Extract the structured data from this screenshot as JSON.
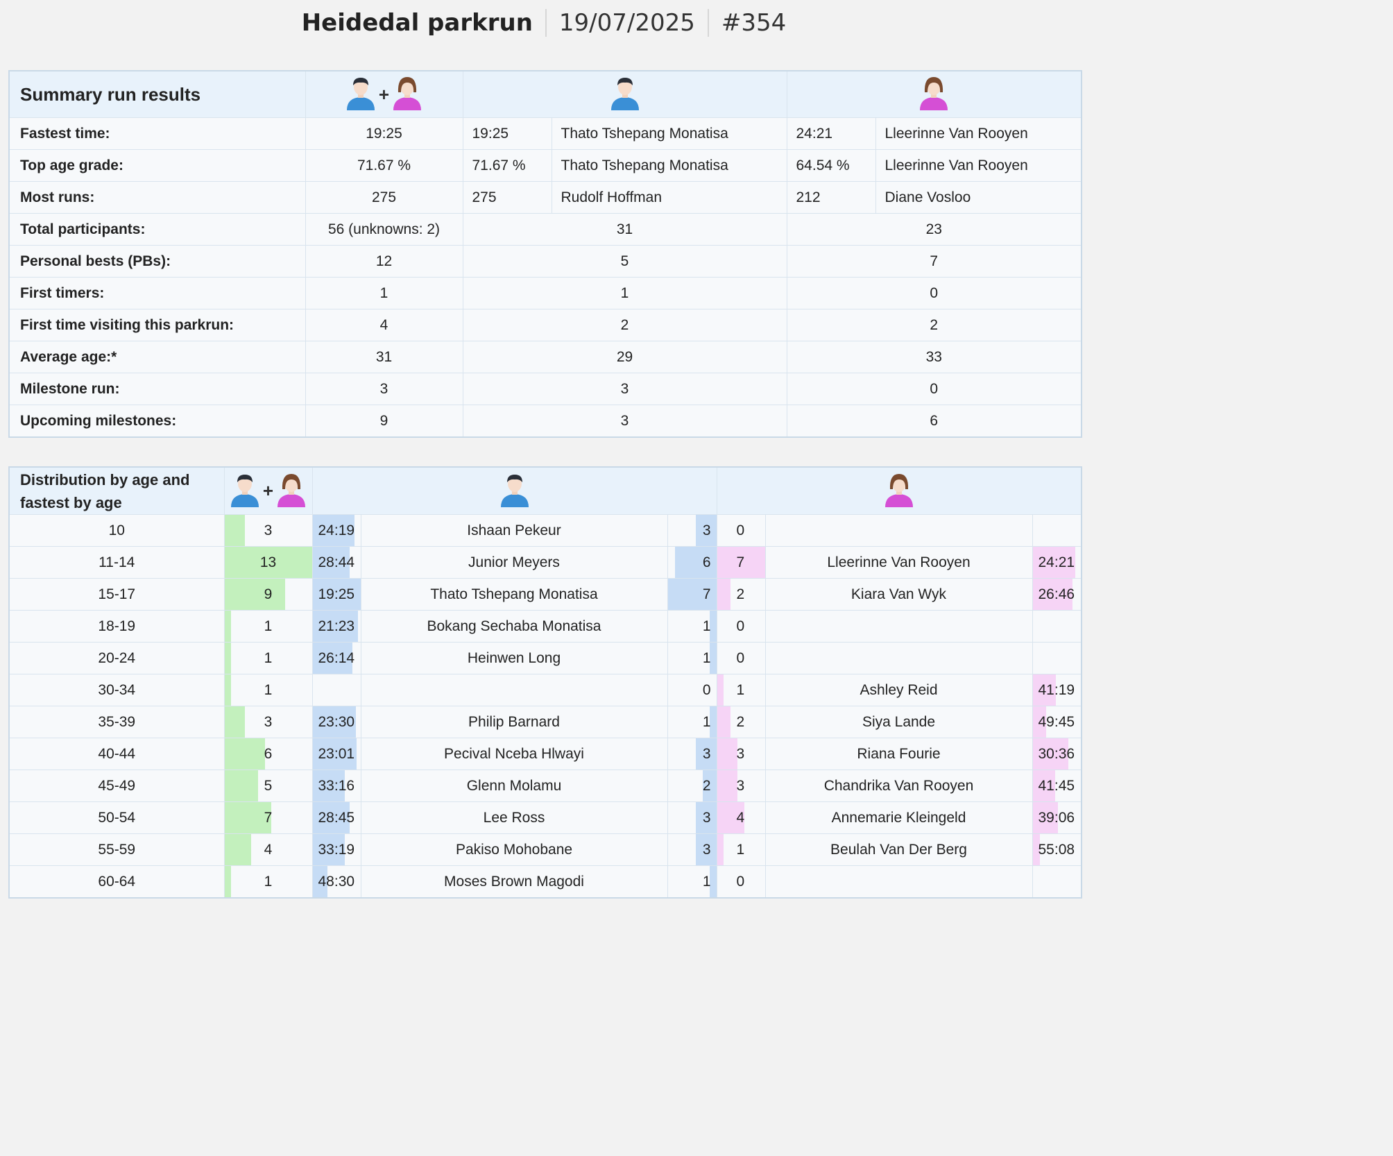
{
  "header": {
    "event": "Heidedal parkrun",
    "date": "19/07/2025",
    "run_number": "#354"
  },
  "icons": {
    "combined": [
      "male-avatar-icon",
      "female-avatar-icon"
    ],
    "male": "male-avatar-icon",
    "female": "female-avatar-icon",
    "plus": "+"
  },
  "summary": {
    "title": "Summary run results",
    "rows": [
      {
        "label": "Fastest time:",
        "all": "19:25",
        "male_val": "19:25",
        "male_name": "Thato Tshepang Monatisa",
        "female_val": "24:21",
        "female_name": "Lleerinne Van Rooyen"
      },
      {
        "label": "Top age grade:",
        "all": "71.67 %",
        "male_val": "71.67 %",
        "male_name": "Thato Tshepang Monatisa",
        "female_val": "64.54 %",
        "female_name": "Lleerinne Van Rooyen"
      },
      {
        "label": "Most runs:",
        "all": "275",
        "male_val": "275",
        "male_name": "Rudolf Hoffman",
        "female_val": "212",
        "female_name": "Diane Vosloo"
      },
      {
        "label": "Total participants:",
        "all": "56 (unknowns: 2)",
        "male": "31",
        "female": "23"
      },
      {
        "label": "Personal bests (PBs):",
        "all": "12",
        "male": "5",
        "female": "7"
      },
      {
        "label": "First timers:",
        "all": "1",
        "male": "1",
        "female": "0"
      },
      {
        "label": "First time visiting this parkrun:",
        "all": "4",
        "male": "2",
        "female": "2"
      },
      {
        "label": "Average age:*",
        "all": "31",
        "male": "29",
        "female": "33"
      },
      {
        "label": "Milestone run:",
        "all": "3",
        "male": "3",
        "female": "0"
      },
      {
        "label": "Upcoming milestones:",
        "all": "9",
        "male": "3",
        "female": "6"
      }
    ]
  },
  "distribution": {
    "title_line1": "Distribution by age and",
    "title_line2": "fastest by age",
    "rows": [
      {
        "age": "10",
        "total": "3",
        "m_time": "24:19",
        "m_name": "Ishaan Pekeur",
        "m_count": "3",
        "f_count": "0",
        "f_name": "",
        "f_time": ""
      },
      {
        "age": "11-14",
        "total": "13",
        "m_time": "28:44",
        "m_name": "Junior Meyers",
        "m_count": "6",
        "f_count": "7",
        "f_name": "Lleerinne Van Rooyen",
        "f_time": "24:21"
      },
      {
        "age": "15-17",
        "total": "9",
        "m_time": "19:25",
        "m_name": "Thato Tshepang Monatisa",
        "m_count": "7",
        "f_count": "2",
        "f_name": "Kiara Van Wyk",
        "f_time": "26:46"
      },
      {
        "age": "18-19",
        "total": "1",
        "m_time": "21:23",
        "m_name": "Bokang Sechaba Monatisa",
        "m_count": "1",
        "f_count": "0",
        "f_name": "",
        "f_time": ""
      },
      {
        "age": "20-24",
        "total": "1",
        "m_time": "26:14",
        "m_name": "Heinwen Long",
        "m_count": "1",
        "f_count": "0",
        "f_name": "",
        "f_time": ""
      },
      {
        "age": "30-34",
        "total": "1",
        "m_time": "",
        "m_name": "",
        "m_count": "0",
        "f_count": "1",
        "f_name": "Ashley Reid",
        "f_time": "41:19"
      },
      {
        "age": "35-39",
        "total": "3",
        "m_time": "23:30",
        "m_name": "Philip Barnard",
        "m_count": "1",
        "f_count": "2",
        "f_name": "Siya Lande",
        "f_time": "49:45"
      },
      {
        "age": "40-44",
        "total": "6",
        "m_time": "23:01",
        "m_name": "Pecival Nceba Hlwayi",
        "m_count": "3",
        "f_count": "3",
        "f_name": "Riana Fourie",
        "f_time": "30:36"
      },
      {
        "age": "45-49",
        "total": "5",
        "m_time": "33:16",
        "m_name": "Glenn Molamu",
        "m_count": "2",
        "f_count": "3",
        "f_name": "Chandrika Van Rooyen",
        "f_time": "41:45"
      },
      {
        "age": "50-54",
        "total": "7",
        "m_time": "28:45",
        "m_name": "Lee Ross",
        "m_count": "3",
        "f_count": "4",
        "f_name": "Annemarie Kleingeld",
        "f_time": "39:06"
      },
      {
        "age": "55-59",
        "total": "4",
        "m_time": "33:19",
        "m_name": "Pakiso Mohobane",
        "m_count": "3",
        "f_count": "1",
        "f_name": "Beulah Van Der Berg",
        "f_time": "55:08"
      },
      {
        "age": "60-64",
        "total": "1",
        "m_time": "48:30",
        "m_name": "Moses Brown Magodi",
        "m_count": "1",
        "f_count": "0",
        "f_name": "",
        "f_time": ""
      }
    ]
  },
  "colors": {
    "total_bar": "#c3f0bd",
    "male_bar": "#c6dcf5",
    "female_bar": "#f6d4f6",
    "header_bg": "#e8f2fb",
    "male_avatar": "#3a8fd6",
    "female_avatar": "#d54fd5"
  }
}
